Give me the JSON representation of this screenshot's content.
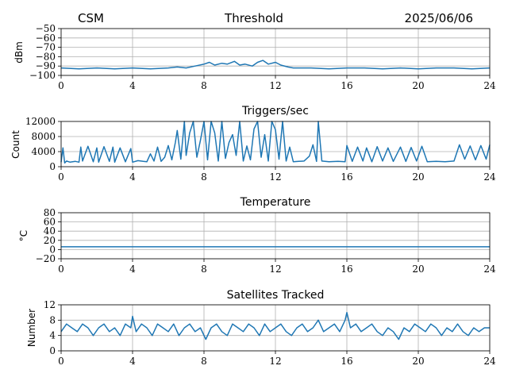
{
  "header": {
    "left": "CSM",
    "center": "Threshold",
    "right": "2025/06/06"
  },
  "colors": {
    "series": "#1f77b4",
    "grid": "#b0b0b0"
  },
  "chart_data": [
    {
      "type": "line",
      "title": "",
      "ylabel": "dBm",
      "xlim": [
        0,
        24
      ],
      "ylim": [
        -100,
        -50
      ],
      "xticks": [
        0,
        4,
        8,
        12,
        16,
        20,
        24
      ],
      "yticks": [
        -100,
        -90,
        -80,
        -70,
        -60,
        -50
      ],
      "ytick_labels": [
        "−100",
        "−90",
        "−80",
        "−70",
        "−60",
        "−50"
      ],
      "grid": true,
      "series": [
        {
          "x": [
            0,
            1,
            2,
            3,
            4,
            5,
            6,
            6.5,
            7,
            7.5,
            8,
            8.3,
            8.6,
            9,
            9.3,
            9.7,
            10,
            10.3,
            10.7,
            11,
            11.3,
            11.6,
            12,
            12.3,
            12.7,
            13,
            14,
            15,
            16,
            17,
            18,
            19,
            20,
            21,
            22,
            23,
            24
          ],
          "y": [
            -92,
            -93,
            -92,
            -93,
            -92,
            -93,
            -92,
            -91,
            -92,
            -90,
            -88,
            -86,
            -89,
            -87,
            -88,
            -85,
            -89,
            -88,
            -90,
            -86,
            -84,
            -88,
            -86,
            -89,
            -91,
            -92,
            -92,
            -93,
            -92,
            -92,
            -93,
            -92,
            -93,
            -92,
            -92,
            -93,
            -92
          ]
        }
      ]
    },
    {
      "type": "line",
      "title": "Triggers/sec",
      "ylabel": "Count",
      "xlim": [
        0,
        24
      ],
      "ylim": [
        0,
        12000
      ],
      "xticks": [
        0,
        4,
        8,
        12,
        16,
        20,
        24
      ],
      "yticks": [
        0,
        4000,
        8000,
        12000
      ],
      "ytick_labels": [
        "0",
        "4000",
        "8000",
        "12000"
      ],
      "grid": true,
      "series": [
        {
          "x": [
            0,
            0.1,
            0.2,
            0.3,
            0.5,
            0.8,
            1.0,
            1.1,
            1.2,
            1.5,
            1.8,
            2.0,
            2.1,
            2.4,
            2.7,
            2.9,
            3.0,
            3.3,
            3.6,
            3.9,
            4.0,
            4.3,
            4.6,
            4.8,
            5.0,
            5.2,
            5.4,
            5.6,
            5.8,
            6.0,
            6.2,
            6.4,
            6.5,
            6.7,
            6.9,
            7.0,
            7.2,
            7.4,
            7.6,
            7.8,
            8.0,
            8.2,
            8.4,
            8.6,
            8.8,
            9.0,
            9.2,
            9.4,
            9.6,
            9.8,
            10.0,
            10.2,
            10.4,
            10.6,
            10.8,
            11.0,
            11.2,
            11.4,
            11.6,
            11.8,
            12.0,
            12.2,
            12.4,
            12.6,
            12.8,
            13.0,
            13.3,
            13.6,
            13.9,
            14.1,
            14.3,
            14.4,
            14.6,
            15.0,
            15.5,
            15.9,
            16.0,
            16.3,
            16.6,
            16.9,
            17.1,
            17.4,
            17.7,
            18.0,
            18.3,
            18.6,
            19.0,
            19.3,
            19.6,
            19.9,
            20.2,
            20.5,
            21.0,
            21.5,
            22.0,
            22.3,
            22.6,
            22.9,
            23.2,
            23.5,
            23.8,
            24.0
          ],
          "y": [
            1200,
            5000,
            1000,
            1500,
            1200,
            1400,
            1200,
            5200,
            1500,
            5400,
            1300,
            5000,
            1200,
            5300,
            1400,
            5200,
            1200,
            5000,
            1300,
            4800,
            1200,
            1600,
            1400,
            1300,
            3400,
            1500,
            5200,
            1400,
            2500,
            5600,
            1800,
            6500,
            9600,
            2000,
            12000,
            3000,
            9000,
            12000,
            2500,
            7000,
            12000,
            1800,
            12000,
            9000,
            1500,
            12000,
            2200,
            6400,
            8500,
            3000,
            12000,
            1500,
            5500,
            1800,
            10000,
            12000,
            2500,
            8500,
            1500,
            12000,
            9800,
            2000,
            12000,
            1500,
            5200,
            1300,
            1400,
            1500,
            2800,
            5800,
            1400,
            12000,
            1500,
            1300,
            1400,
            1300,
            5600,
            1400,
            5200,
            1500,
            5000,
            1300,
            5300,
            1500,
            5000,
            1400,
            5200,
            1400,
            5100,
            1500,
            5400,
            1300,
            1400,
            1300,
            1500,
            5800,
            2000,
            5500,
            1800,
            5600,
            2000,
            5800
          ]
        }
      ]
    },
    {
      "type": "line",
      "title": "Temperature",
      "ylabel": "°C",
      "xlim": [
        0,
        24
      ],
      "ylim": [
        -20,
        80
      ],
      "xticks": [
        0,
        4,
        8,
        12,
        16,
        20,
        24
      ],
      "yticks": [
        -20,
        0,
        20,
        40,
        60,
        80
      ],
      "ytick_labels": [
        "−20",
        "0",
        "20",
        "40",
        "60",
        "80"
      ],
      "grid": true,
      "series": [
        {
          "x": [
            0,
            4,
            8,
            12,
            16,
            20,
            24
          ],
          "y": [
            6,
            6,
            6,
            6,
            6,
            6,
            6
          ]
        }
      ]
    },
    {
      "type": "line",
      "title": "Satellites Tracked",
      "ylabel": "Number",
      "xlim": [
        0,
        24
      ],
      "ylim": [
        0,
        12
      ],
      "xticks": [
        0,
        4,
        8,
        12,
        16,
        20,
        24
      ],
      "yticks": [
        0,
        4,
        8,
        12
      ],
      "ytick_labels": [
        "0",
        "4",
        "8",
        "12"
      ],
      "grid": true,
      "series": [
        {
          "x": [
            0,
            0.3,
            0.6,
            0.9,
            1.2,
            1.5,
            1.8,
            2.1,
            2.4,
            2.7,
            3.0,
            3.3,
            3.6,
            3.9,
            4.0,
            4.2,
            4.5,
            4.8,
            5.1,
            5.4,
            5.7,
            6.0,
            6.3,
            6.6,
            6.9,
            7.2,
            7.5,
            7.8,
            8.1,
            8.4,
            8.7,
            9.0,
            9.3,
            9.6,
            9.9,
            10.2,
            10.5,
            10.8,
            11.1,
            11.4,
            11.7,
            12.0,
            12.3,
            12.6,
            12.9,
            13.2,
            13.5,
            13.8,
            14.1,
            14.4,
            14.7,
            15.0,
            15.3,
            15.6,
            15.9,
            16.0,
            16.2,
            16.5,
            16.8,
            17.1,
            17.4,
            17.7,
            18.0,
            18.3,
            18.6,
            18.9,
            19.2,
            19.5,
            19.8,
            20.1,
            20.4,
            20.7,
            21.0,
            21.3,
            21.6,
            21.9,
            22.2,
            22.5,
            22.8,
            23.1,
            23.4,
            23.7,
            24.0
          ],
          "y": [
            5,
            7,
            6,
            5,
            7,
            6,
            4,
            6,
            7,
            5,
            6,
            4,
            7,
            6,
            9,
            5,
            7,
            6,
            4,
            7,
            6,
            5,
            7,
            4,
            6,
            7,
            5,
            6,
            3,
            6,
            7,
            5,
            4,
            7,
            6,
            5,
            7,
            6,
            4,
            7,
            5,
            6,
            7,
            5,
            4,
            6,
            7,
            5,
            6,
            8,
            5,
            6,
            7,
            5,
            8,
            10,
            6,
            7,
            5,
            6,
            7,
            5,
            4,
            6,
            5,
            3,
            6,
            5,
            7,
            6,
            5,
            7,
            6,
            4,
            6,
            5,
            7,
            5,
            4,
            6,
            5,
            6,
            6
          ]
        }
      ]
    }
  ]
}
